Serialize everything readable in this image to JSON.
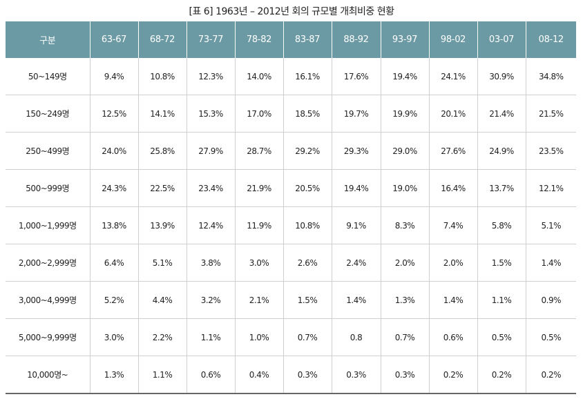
{
  "caption": "[표 6] 1963년 – 2012년 회의 규모별 개최비중 현황",
  "table": {
    "headers": [
      "구분",
      "63-67",
      "68-72",
      "73-77",
      "78-82",
      "83-87",
      "88-92",
      "93-97",
      "98-02",
      "03-07",
      "08-12"
    ],
    "rows": [
      [
        "50~149명",
        "9.4%",
        "10.8%",
        "12.3%",
        "14.0%",
        "16.1%",
        "17.6%",
        "19.4%",
        "24.1%",
        "30.9%",
        "34.8%"
      ],
      [
        "150~249명",
        "12.5%",
        "14.1%",
        "15.3%",
        "17.0%",
        "18.5%",
        "19.7%",
        "19.9%",
        "20.1%",
        "21.4%",
        "21.5%"
      ],
      [
        "250~499명",
        "24.0%",
        "25.8%",
        "27.9%",
        "28.7%",
        "29.2%",
        "29.3%",
        "29.0%",
        "27.6%",
        "24.9%",
        "23.5%"
      ],
      [
        "500~999명",
        "24.3%",
        "22.5%",
        "23.4%",
        "21.9%",
        "20.5%",
        "19.4%",
        "19.0%",
        "16.4%",
        "13.7%",
        "12.1%"
      ],
      [
        "1,000~1,999명",
        "13.8%",
        "13.9%",
        "12.4%",
        "11.9%",
        "10.8%",
        "9.1%",
        "8.3%",
        "7.4%",
        "5.8%",
        "5.1%"
      ],
      [
        "2,000~2,999명",
        "6.4%",
        "5.1%",
        "3.8%",
        "3.0%",
        "2.6%",
        "2.4%",
        "2.0%",
        "2.0%",
        "1.5%",
        "1.4%"
      ],
      [
        "3,000~4,999명",
        "5.2%",
        "4.4%",
        "3.2%",
        "2.1%",
        "1.5%",
        "1.4%",
        "1.3%",
        "1.4%",
        "1.1%",
        "0.9%"
      ],
      [
        "5,000~9,999명",
        "3.0%",
        "2.2%",
        "1.1%",
        "1.0%",
        "0.7%",
        "0.8",
        "0.7%",
        "0.6%",
        "0.5%",
        "0.5%"
      ],
      [
        "10,000명~",
        "1.3%",
        "1.1%",
        "0.6%",
        "0.4%",
        "0.3%",
        "0.3%",
        "0.3%",
        "0.2%",
        "0.2%",
        "0.2%"
      ]
    ]
  },
  "colors": {
    "header_bg": "#6b9aa4",
    "header_text": "#ffffff",
    "grid_line": "#cfcfcf",
    "bottom_rule": "#666666"
  }
}
